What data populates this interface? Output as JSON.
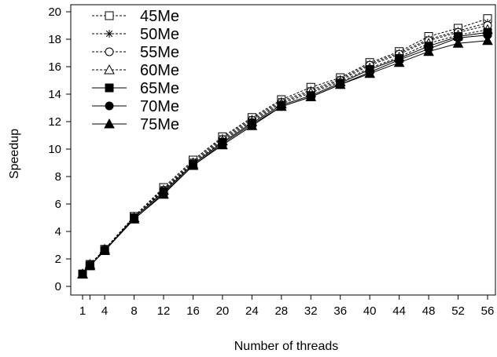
{
  "chart_data": {
    "type": "line",
    "title": "",
    "xlabel": "Number of threads",
    "ylabel": "Speedup",
    "x": [
      1,
      2,
      4,
      8,
      12,
      16,
      20,
      24,
      28,
      32,
      36,
      40,
      44,
      48,
      52,
      56
    ],
    "x_ticks": [
      1,
      4,
      8,
      12,
      16,
      20,
      24,
      28,
      32,
      36,
      40,
      44,
      48,
      52,
      56
    ],
    "ylim": [
      0,
      20
    ],
    "y_ticks": [
      0,
      2,
      4,
      6,
      8,
      10,
      12,
      14,
      16,
      18,
      20
    ],
    "grid": false,
    "legend_position": "top-left",
    "series": [
      {
        "name": "45Me",
        "marker": "square-open",
        "dashed": true,
        "values": [
          0.9,
          1.6,
          2.7,
          5.1,
          7.2,
          9.2,
          10.9,
          12.3,
          13.6,
          14.5,
          15.2,
          16.3,
          17.1,
          18.2,
          18.8,
          19.5
        ]
      },
      {
        "name": "50Me",
        "marker": "asterisk",
        "dashed": true,
        "values": [
          0.9,
          1.6,
          2.7,
          5.1,
          7.1,
          9.1,
          10.8,
          12.2,
          13.5,
          14.3,
          15.1,
          16.2,
          17.0,
          18.0,
          18.6,
          19.2
        ]
      },
      {
        "name": "55Me",
        "marker": "circle-open",
        "dashed": true,
        "values": [
          0.9,
          1.6,
          2.7,
          5.0,
          7.0,
          9.0,
          10.7,
          12.1,
          13.4,
          14.2,
          15.0,
          16.1,
          16.9,
          17.9,
          18.5,
          19.0
        ]
      },
      {
        "name": "60Me",
        "marker": "triangle-open",
        "dashed": true,
        "values": [
          0.9,
          1.6,
          2.7,
          5.0,
          7.0,
          8.9,
          10.6,
          12.0,
          13.3,
          14.1,
          14.9,
          15.9,
          16.7,
          17.7,
          18.3,
          18.7
        ]
      },
      {
        "name": "65Me",
        "marker": "square-filled",
        "dashed": false,
        "values": [
          0.9,
          1.5,
          2.6,
          5.0,
          6.9,
          8.9,
          10.5,
          11.9,
          13.2,
          13.9,
          14.8,
          15.8,
          16.6,
          17.5,
          18.2,
          18.5
        ]
      },
      {
        "name": "70Me",
        "marker": "circle-filled",
        "dashed": false,
        "values": [
          0.9,
          1.5,
          2.6,
          4.9,
          6.8,
          8.8,
          10.4,
          11.8,
          13.1,
          13.8,
          14.7,
          15.6,
          16.5,
          17.3,
          18.1,
          18.3
        ]
      },
      {
        "name": "75Me",
        "marker": "triangle-filled",
        "dashed": false,
        "values": [
          0.9,
          1.5,
          2.6,
          4.9,
          6.7,
          8.8,
          10.3,
          11.7,
          13.1,
          13.8,
          14.7,
          15.5,
          16.3,
          17.1,
          17.7,
          17.9
        ]
      }
    ]
  }
}
